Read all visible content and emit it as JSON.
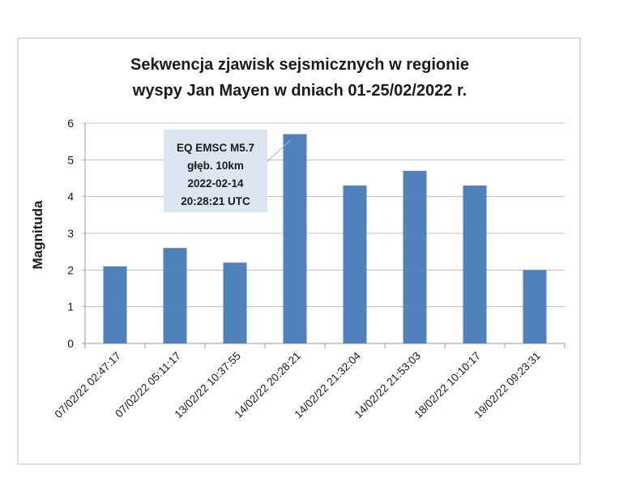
{
  "chart_data": {
    "type": "bar",
    "title": [
      "Sekwencja zjawisk sejsmicznych w regionie",
      "wyspy Jan Mayen w dniach 01-25/02/2022 r."
    ],
    "xlabel": "",
    "ylabel": "Magnituda",
    "ylim": [
      0,
      6
    ],
    "yticks": [
      0,
      1,
      2,
      3,
      4,
      5,
      6
    ],
    "grid": true,
    "categories": [
      "07/02/22 02:47:17",
      "07/02/22 05:11:17",
      "13/02/22 10:37:55",
      "14/02/22 20:28:21",
      "14/02/22 21:32:04",
      "14/02/22 21:53:03",
      "18/02/22 10:10:17",
      "19/02/22 09:23:31"
    ],
    "values": [
      2.1,
      2.6,
      2.2,
      5.7,
      4.3,
      4.7,
      4.3,
      2.0
    ],
    "bar_color": "#4f81bd",
    "annotation": {
      "target_index": 3,
      "lines": [
        "EQ EMSC M5.7",
        "głęb. 10km",
        "2022-02-14",
        "20:28:21 UTC"
      ],
      "background": "#dce6f2"
    }
  }
}
